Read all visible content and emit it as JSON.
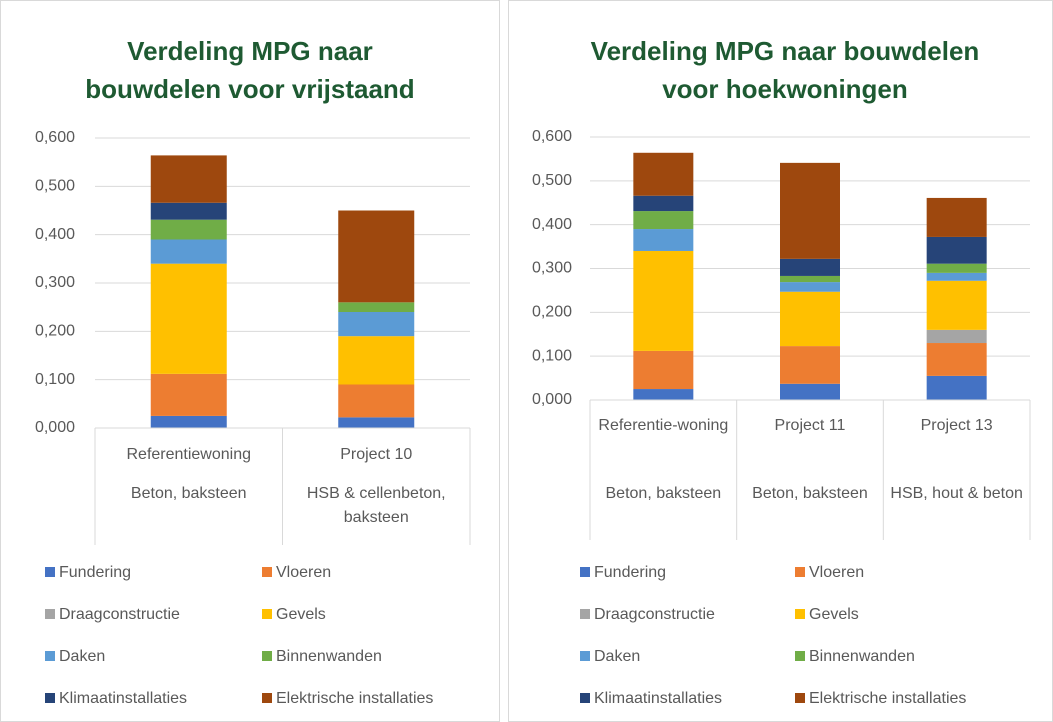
{
  "chart_data": [
    {
      "type": "stacked-bar",
      "title": "Verdeling MPG naar bouwdelen voor vrijstaand",
      "categories": [
        "Referentiewoning",
        "Project 10"
      ],
      "subcategories": [
        "Beton, baksteen",
        "HSB & cellenbeton, baksteen"
      ],
      "ylim": [
        0,
        0.6
      ],
      "yticks": [
        {
          "value": 0,
          "label": "0,000"
        },
        {
          "value": 0.1,
          "label": "0,100"
        },
        {
          "value": 0.2,
          "label": "0,200"
        },
        {
          "value": 0.3,
          "label": "0,300"
        },
        {
          "value": 0.4,
          "label": "0,400"
        },
        {
          "value": 0.5,
          "label": "0,500"
        },
        {
          "value": 0.6,
          "label": "0,600"
        }
      ],
      "grid": true,
      "series": [
        {
          "name": "Fundering",
          "color": "#4472c4",
          "values": [
            0.025,
            0.022
          ]
        },
        {
          "name": "Vloeren",
          "color": "#ed7d31",
          "values": [
            0.087,
            0.068
          ]
        },
        {
          "name": "Draagconstructie",
          "color": "#a5a5a5",
          "values": [
            0,
            0
          ]
        },
        {
          "name": "Gevels",
          "color": "#ffc000",
          "values": [
            0.228,
            0.1
          ]
        },
        {
          "name": "Daken",
          "color": "#5b9bd5",
          "values": [
            0.05,
            0.05
          ]
        },
        {
          "name": "Binnenwanden",
          "color": "#70ad47",
          "values": [
            0.041,
            0.02
          ]
        },
        {
          "name": "Klimaatinstallaties",
          "color": "#264478",
          "values": [
            0.035,
            0
          ]
        },
        {
          "name": "Elektrische installaties",
          "color": "#9e480e",
          "values": [
            0.098,
            0.19
          ]
        }
      ]
    },
    {
      "type": "stacked-bar",
      "title": "Verdeling MPG naar bouwdelen voor hoekwoningen",
      "categories": [
        "Referentie-woning",
        "Project 11",
        "Project 13"
      ],
      "subcategories": [
        "Beton, baksteen",
        "Beton, baksteen",
        "HSB, hout & beton"
      ],
      "ylim": [
        0,
        0.6
      ],
      "yticks": [
        {
          "value": 0,
          "label": "0,000"
        },
        {
          "value": 0.1,
          "label": "0,100"
        },
        {
          "value": 0.2,
          "label": "0,200"
        },
        {
          "value": 0.3,
          "label": "0,300"
        },
        {
          "value": 0.4,
          "label": "0,400"
        },
        {
          "value": 0.5,
          "label": "0,500"
        },
        {
          "value": 0.6,
          "label": "0,600"
        }
      ],
      "grid": true,
      "series": [
        {
          "name": "Fundering",
          "color": "#4472c4",
          "values": [
            0.025,
            0.037,
            0.055
          ]
        },
        {
          "name": "Vloeren",
          "color": "#ed7d31",
          "values": [
            0.087,
            0.086,
            0.075
          ]
        },
        {
          "name": "Draagconstructie",
          "color": "#a5a5a5",
          "values": [
            0,
            0,
            0.03
          ]
        },
        {
          "name": "Gevels",
          "color": "#ffc000",
          "values": [
            0.228,
            0.124,
            0.112
          ]
        },
        {
          "name": "Daken",
          "color": "#5b9bd5",
          "values": [
            0.05,
            0.022,
            0.018
          ]
        },
        {
          "name": "Binnenwanden",
          "color": "#70ad47",
          "values": [
            0.041,
            0.014,
            0.021
          ]
        },
        {
          "name": "Klimaatinstallaties",
          "color": "#264478",
          "values": [
            0.035,
            0.039,
            0.061
          ]
        },
        {
          "name": "Elektrische installaties",
          "color": "#9e480e",
          "values": [
            0.098,
            0.219,
            0.089
          ]
        }
      ]
    }
  ]
}
